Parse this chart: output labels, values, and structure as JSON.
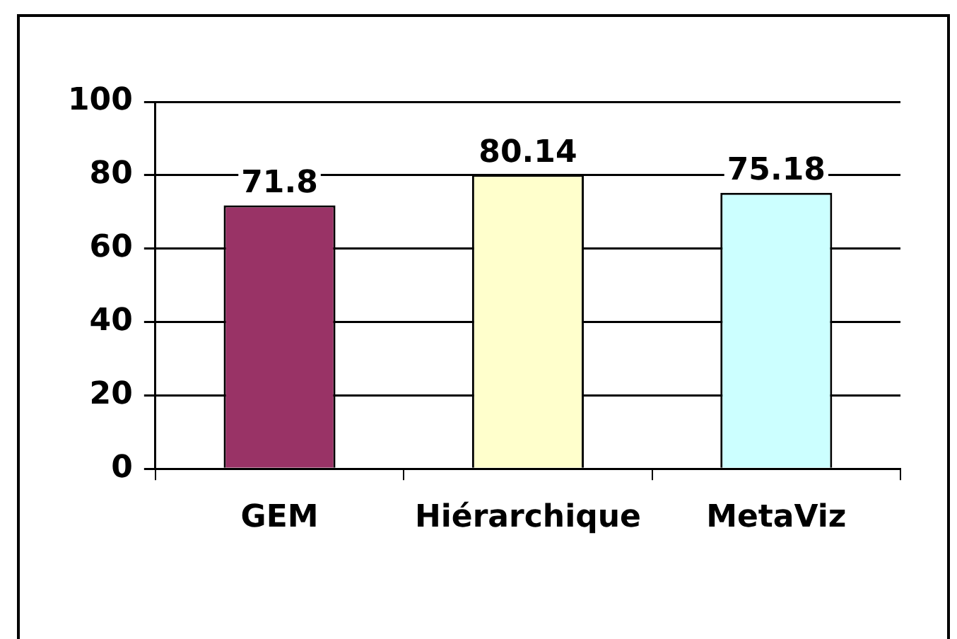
{
  "chart_data": {
    "type": "bar",
    "categories": [
      "GEM",
      "Hiérarchique",
      "MetaViz"
    ],
    "values": [
      71.8,
      80.14,
      75.18
    ],
    "colors": [
      "#993366",
      "#ffffcc",
      "#ccffff"
    ],
    "ylim": [
      0,
      100
    ],
    "yticks": [
      0,
      20,
      40,
      60,
      80,
      100
    ],
    "grid": "y",
    "data_labels": true,
    "legend": false
  }
}
